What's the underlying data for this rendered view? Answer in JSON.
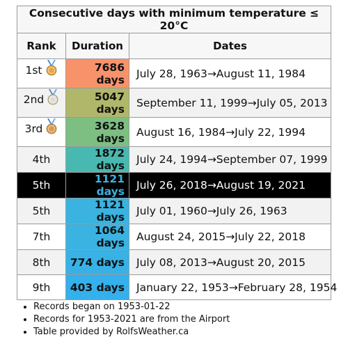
{
  "chart_data": {
    "type": "table",
    "title": "Consecutive days with minimum temperature ≤ 20°C",
    "columns": [
      "Rank",
      "Duration",
      "Dates"
    ],
    "rows": [
      {
        "rank": "1st",
        "medal": "gold-medal-icon",
        "duration": "7686 days",
        "dates": "July 28, 1963→August 11, 1984",
        "color": "#f8926a",
        "highlight": false
      },
      {
        "rank": "2nd",
        "medal": "silver-medal-icon",
        "duration": "5047 days",
        "dates": "September 11, 1999→July 05, 2013",
        "color": "#b1b76a",
        "highlight": false
      },
      {
        "rank": "3rd",
        "medal": "bronze-medal-icon",
        "duration": "3628 days",
        "dates": "August 16, 1984→July 22, 1994",
        "color": "#7dbf82",
        "highlight": false
      },
      {
        "rank": "4th",
        "medal": null,
        "duration": "1872 days",
        "dates": "July 24, 1994→September 07, 1999",
        "color": "#47b9b0",
        "highlight": false
      },
      {
        "rank": "5th",
        "medal": null,
        "duration": "1121 days",
        "dates": "July 26, 2018→August 19, 2021",
        "color": "#000000",
        "highlight": true
      },
      {
        "rank": "5th",
        "medal": null,
        "duration": "1121 days",
        "dates": "July 01, 1960→July 26, 1963",
        "color": "#3ab3e0",
        "highlight": false
      },
      {
        "rank": "7th",
        "medal": null,
        "duration": "1064 days",
        "dates": "August 24, 2015→July 22, 2018",
        "color": "#3ab3e2",
        "highlight": false
      },
      {
        "rank": "8th",
        "medal": null,
        "duration": "774 days",
        "dates": "July 08, 2013→August 20, 2015",
        "color": "#38b2e6",
        "highlight": false
      },
      {
        "rank": "9th",
        "medal": null,
        "duration": "403 days",
        "dates": "January 22, 1953→February 28, 1954",
        "color": "#34b0ec",
        "highlight": false
      }
    ]
  },
  "notes": [
    "Records began on 1953-01-22",
    "Records for 1953-2021 are from the Airport",
    "Table provided by RolfsWeather.ca"
  ]
}
